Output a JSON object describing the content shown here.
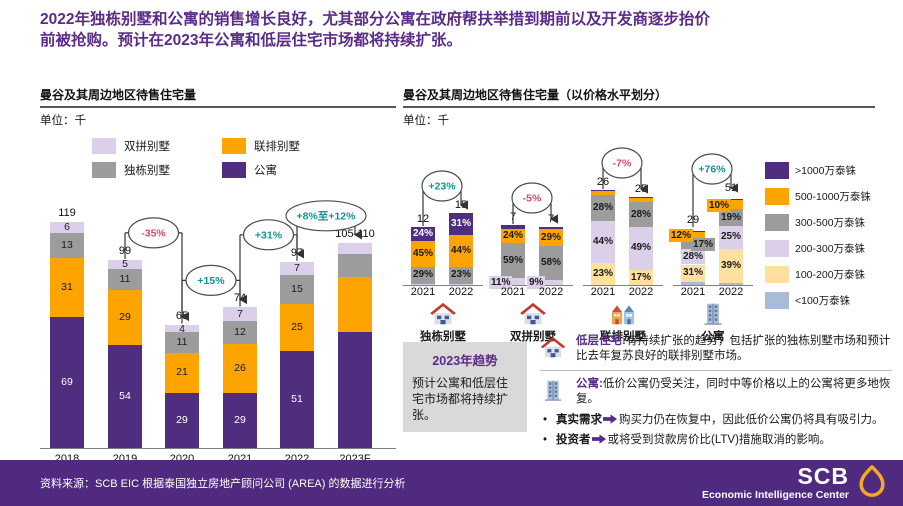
{
  "page": {
    "title_line1": "2022年独栋别墅和公寓的销售增长良好，尤其部分公寓在政府帮扶举措到期前以及开发商逐步抬价",
    "title_line2": "前被抢购。预计在2023年公寓和低层住宅市场都将持续扩张。"
  },
  "colors": {
    "title_purple": "#5B2C87",
    "footer_bg": "#4F2A7F",
    "teal": "#0F968F",
    "pink": "#D9476F",
    "axis": "#7f7f7f",
    "trend_box_bg": "#D9D9D9",
    "series": {
      "condo": "#4F2D7F",
      "townhouse": "#FDA400",
      "detached": "#9C9C9C",
      "semi": "#DCCFEA"
    },
    "bands": {
      "p1000plus": "#4F2D7F",
      "p500_1000": "#FDA400",
      "p300_500": "#9C9C9C",
      "p200_300": "#DCCFEA",
      "p100_200": "#FFE0A1",
      "p_lt100": "#A9BBD7"
    }
  },
  "chart_data": [
    {
      "type": "bar",
      "stacked": true,
      "title": "曼谷及其周边地区待售住宅量",
      "unit_label": "单位：千",
      "categories": [
        "2018",
        "2019",
        "2020",
        "2021",
        "2022",
        "2023F"
      ],
      "series": [
        {
          "key": "condo",
          "name": "公寓",
          "values": [
            69,
            54,
            29,
            29,
            51,
            61
          ]
        },
        {
          "key": "townhouse",
          "name": "联排别墅",
          "values": [
            31,
            29,
            21,
            26,
            25,
            29
          ]
        },
        {
          "key": "detached",
          "name": "独栋别墅",
          "values": [
            13,
            11,
            11,
            12,
            15,
            12
          ]
        },
        {
          "key": "semi",
          "name": "双拼别墅",
          "values": [
            6,
            5,
            4,
            7,
            7,
            6
          ]
        }
      ],
      "totals": [
        "119",
        "99",
        "65",
        "74",
        "97",
        "105-110"
      ],
      "show_segment_labels": [
        true,
        true,
        true,
        true,
        true,
        false
      ],
      "legend_order": [
        "semi",
        "townhouse",
        "detached",
        "condo"
      ],
      "annotations": [
        {
          "from": 1,
          "to": 2,
          "label": "-35%",
          "sentiment": "negative",
          "wide": false
        },
        {
          "from": 2,
          "to": 3,
          "label": "+15%",
          "sentiment": "positive",
          "wide": false
        },
        {
          "from": 3,
          "to": 4,
          "label": "+31%",
          "sentiment": "positive",
          "wide": false
        },
        {
          "from": 4,
          "to": 5,
          "label": "+8%至+12%",
          "sentiment": "positive",
          "wide": true
        }
      ]
    },
    {
      "type": "bar",
      "stacked": true,
      "percent": true,
      "title": "曼谷及其周边地区待售住宅量（以价格水平划分）",
      "unit_label": "单位：千",
      "price_bands": [
        {
          "key": "p1000plus",
          "label": ">1000万泰铢"
        },
        {
          "key": "p500_1000",
          "label": "500-1000万泰铢"
        },
        {
          "key": "p300_500",
          "label": "300-500万泰铢"
        },
        {
          "key": "p200_300",
          "label": "200-300万泰铢"
        },
        {
          "key": "p100_200",
          "label": "100-200万泰铢"
        },
        {
          "key": "p_lt100",
          "label": "<100万泰铢"
        }
      ],
      "groups": [
        {
          "name": "独栋别墅",
          "icon": "house",
          "years": [
            "2021",
            "2022"
          ],
          "totals": [
            "12",
            "15"
          ],
          "annotation": {
            "label": "+23%",
            "sentiment": "positive"
          },
          "bars": [
            {
              "segments_bottom_up": [
                {
                  "band": "p200_300",
                  "pct": 2,
                  "label": ""
                },
                {
                  "band": "p300_500",
                  "pct": 29,
                  "label": "29%"
                },
                {
                  "band": "p500_1000",
                  "pct": 45,
                  "label": "45%"
                },
                {
                  "band": "p1000plus",
                  "pct": 24,
                  "label": "24%"
                }
              ]
            },
            {
              "segments_bottom_up": [
                {
                  "band": "p200_300",
                  "pct": 2,
                  "label": ""
                },
                {
                  "band": "p300_500",
                  "pct": 23,
                  "label": "23%"
                },
                {
                  "band": "p500_1000",
                  "pct": 44,
                  "label": "44%"
                },
                {
                  "band": "p1000plus",
                  "pct": 31,
                  "label": "31%"
                }
              ]
            }
          ]
        },
        {
          "name": "双拼别墅",
          "icon": "house",
          "years": [
            "2021",
            "2022"
          ],
          "totals": [
            "7",
            "7"
          ],
          "annotation": {
            "label": "-5%",
            "sentiment": "negative"
          },
          "bars": [
            {
              "segments_bottom_up": [
                {
                  "band": "p200_300",
                  "pct": 11,
                  "label": "11%"
                },
                {
                  "band": "p300_500",
                  "pct": 59,
                  "label": "59%"
                },
                {
                  "band": "p500_1000",
                  "pct": 24,
                  "label": "24%"
                },
                {
                  "band": "p1000plus",
                  "pct": 6,
                  "label": ""
                }
              ]
            },
            {
              "segments_bottom_up": [
                {
                  "band": "p200_300",
                  "pct": 9,
                  "label": "9%"
                },
                {
                  "band": "p300_500",
                  "pct": 58,
                  "label": "58%"
                },
                {
                  "band": "p500_1000",
                  "pct": 29,
                  "label": "29%"
                },
                {
                  "band": "p1000plus",
                  "pct": 4,
                  "label": ""
                }
              ]
            }
          ]
        },
        {
          "name": "联排别墅",
          "icon": "townhouses",
          "years": [
            "2021",
            "2022"
          ],
          "totals": [
            "26",
            "25"
          ],
          "annotation": {
            "label": "-7%",
            "sentiment": "negative"
          },
          "bars": [
            {
              "segments_bottom_up": [
                {
                  "band": "p100_200",
                  "pct": 23,
                  "label": "23%"
                },
                {
                  "band": "p200_300",
                  "pct": 44,
                  "label": "44%"
                },
                {
                  "band": "p300_500",
                  "pct": 28,
                  "label": "28%"
                },
                {
                  "band": "p500_1000",
                  "pct": 4,
                  "label": ""
                },
                {
                  "band": "p1000plus",
                  "pct": 1,
                  "label": ""
                }
              ]
            },
            {
              "segments_bottom_up": [
                {
                  "band": "p100_200",
                  "pct": 17,
                  "label": "17%"
                },
                {
                  "band": "p200_300",
                  "pct": 49,
                  "label": "49%"
                },
                {
                  "band": "p300_500",
                  "pct": 28,
                  "label": "28%"
                },
                {
                  "band": "p500_1000",
                  "pct": 5,
                  "label": ""
                },
                {
                  "band": "p1000plus",
                  "pct": 1,
                  "label": ""
                }
              ]
            }
          ]
        },
        {
          "name": "公寓",
          "icon": "building",
          "years": [
            "2021",
            "2022"
          ],
          "totals": [
            "29",
            "51"
          ],
          "annotation": {
            "label": "+76%",
            "sentiment": "positive"
          },
          "bars": [
            {
              "segments_bottom_up": [
                {
                  "band": "p_lt100",
                  "pct": 5,
                  "label": ""
                },
                {
                  "band": "p100_200",
                  "pct": 31,
                  "label": "31%"
                },
                {
                  "band": "p200_300",
                  "pct": 28,
                  "label": "28%"
                },
                {
                  "band": "p300_500",
                  "pct": 17,
                  "label": "17%"
                },
                {
                  "band": "p500_1000",
                  "pct": 12,
                  "label": "12%"
                },
                {
                  "band": "p1000plus",
                  "pct": 2,
                  "label": ""
                }
              ]
            },
            {
              "segments_bottom_up": [
                {
                  "band": "p_lt100",
                  "pct": 2,
                  "label": ""
                },
                {
                  "band": "p100_200",
                  "pct": 39,
                  "label": "39%"
                },
                {
                  "band": "p200_300",
                  "pct": 25,
                  "label": "25%"
                },
                {
                  "band": "p300_500",
                  "pct": 19,
                  "label": "19%"
                },
                {
                  "band": "p500_1000",
                  "pct": 10,
                  "label": "10%"
                },
                {
                  "band": "p1000plus",
                  "pct": 2,
                  "label": ""
                }
              ]
            }
          ]
        }
      ]
    }
  ],
  "trend_box": {
    "title": "2023年趋势",
    "body": "预计公寓和低层住宅市场都将持续扩张。"
  },
  "insights": {
    "items": [
      {
        "icon": "house",
        "heading": "低层住宅:",
        "text": "有持续扩张的趋势，包括扩张的独栋别墅市场和预计比去年复苏良好的联排别墅市场。"
      },
      {
        "icon": "building",
        "heading": "公寓:",
        "text": "低价公寓仍受关注，同时中等价格以上的公寓将更多地恢复。"
      }
    ],
    "bullets": [
      {
        "lead": "真实需求",
        "text": "购买力仍在恢复中，因此低价公寓仍将具有吸引力。"
      },
      {
        "lead": "投资者",
        "text": "或将受到贷款房价比(LTV)措施取消的影响。"
      }
    ]
  },
  "footer": {
    "source": "资料来源：SCB EIC 根据泰国独立房地产顾问公司 (AREA) 的数据进行分析",
    "logo_line1": "SCB",
    "logo_line2": "Economic Intelligence Center"
  }
}
